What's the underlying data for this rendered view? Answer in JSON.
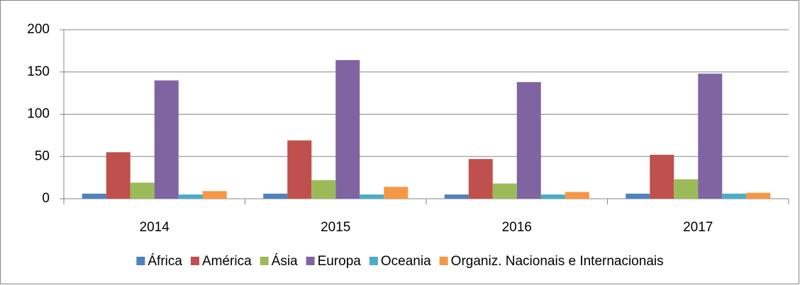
{
  "chart_data": {
    "type": "bar",
    "categories": [
      "2014",
      "2015",
      "2016",
      "2017"
    ],
    "series": [
      {
        "name": "África",
        "color": "#4f81bd",
        "values": [
          6,
          6,
          5,
          6
        ]
      },
      {
        "name": "América",
        "color": "#c0504d",
        "values": [
          55,
          69,
          47,
          52
        ]
      },
      {
        "name": "Ásia",
        "color": "#9bbb59",
        "values": [
          19,
          22,
          18,
          23
        ]
      },
      {
        "name": "Europa",
        "color": "#8064a2",
        "values": [
          140,
          164,
          138,
          148
        ]
      },
      {
        "name": "Oceania",
        "color": "#4bacc6",
        "values": [
          5,
          5,
          5,
          6
        ]
      },
      {
        "name": "Organiz. Nacionais e Internacionais",
        "color": "#f79646",
        "values": [
          9,
          14,
          8,
          7
        ]
      }
    ],
    "ylim": [
      0,
      200
    ],
    "yticks": [
      0,
      50,
      100,
      150,
      200
    ],
    "grid": true,
    "legend": "bottom"
  }
}
